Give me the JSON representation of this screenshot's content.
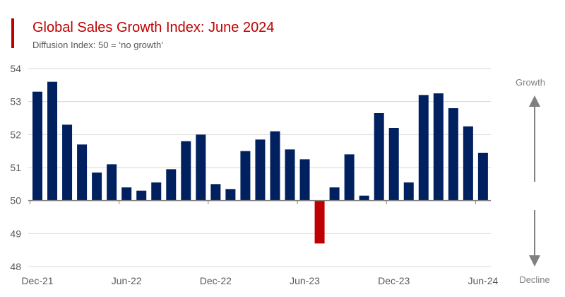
{
  "chart_data": {
    "type": "bar",
    "title": "Global Sales Growth Index: June 2024",
    "subtitle": "Diffusion Index: 50 = ‘no growth’",
    "baseline": 50,
    "ylim": [
      48,
      54
    ],
    "yticks": [
      48,
      49,
      50,
      51,
      52,
      53,
      54
    ],
    "grid": true,
    "x_tick_labels": [
      "Dec-21",
      "Jun-22",
      "Dec-22",
      "Jun-23",
      "Dec-23",
      "Jun-24"
    ],
    "x_tick_label_every": 6,
    "values": [
      53.3,
      53.6,
      52.3,
      51.7,
      50.85,
      51.1,
      50.4,
      50.3,
      50.55,
      50.95,
      51.8,
      52.0,
      50.5,
      50.35,
      51.5,
      51.85,
      52.1,
      51.55,
      51.25,
      48.7,
      50.4,
      51.4,
      50.15,
      52.65,
      52.2,
      50.55,
      53.2,
      53.25,
      52.8,
      52.25,
      51.45
    ],
    "colors": {
      "above": "#002060",
      "below": "#c00000",
      "accent": "#c00000"
    },
    "annotations": {
      "growth": "Growth",
      "decline": "Decline"
    }
  }
}
